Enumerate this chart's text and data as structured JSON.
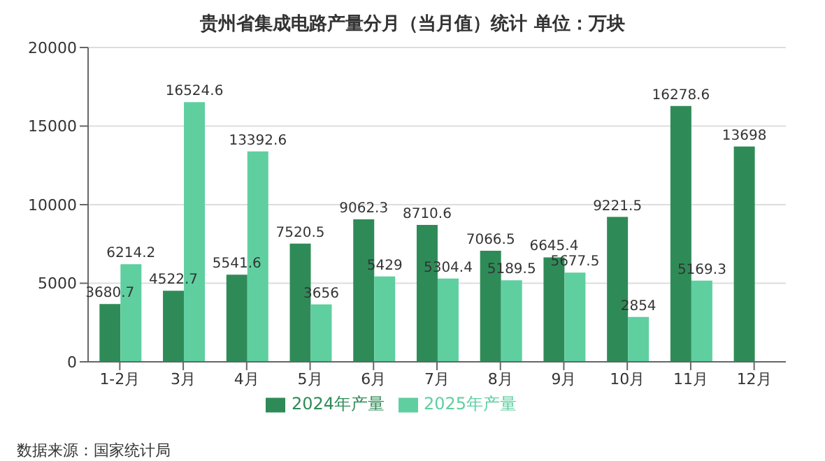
{
  "chart_data": {
    "type": "bar",
    "title": "贵州省集成电路产量分月（当月值）统计 单位：万块",
    "categories": [
      "1-2月",
      "3月",
      "4月",
      "5月",
      "6月",
      "7月",
      "8月",
      "9月",
      "10月",
      "11月",
      "12月"
    ],
    "series": [
      {
        "name": "2024年产量",
        "color": "#2e8b57",
        "values": [
          3680.7,
          4522.7,
          5541.6,
          7520.5,
          9062.3,
          8710.6,
          7066.5,
          6645.4,
          9221.5,
          16278.6,
          13698
        ]
      },
      {
        "name": "2025年产量",
        "color": "#5fcfa0",
        "values": [
          6214.2,
          16524.6,
          13392.6,
          3656,
          5429,
          5304.4,
          5189.5,
          5677.5,
          2854,
          5169.3,
          null
        ]
      }
    ],
    "ylim": [
      0,
      20000
    ],
    "yticks": [
      0,
      5000,
      10000,
      15000,
      20000
    ],
    "grid": "y",
    "legend": "bottom",
    "data_labels": true,
    "annotations": [
      "数据来源：国家统计局"
    ]
  }
}
